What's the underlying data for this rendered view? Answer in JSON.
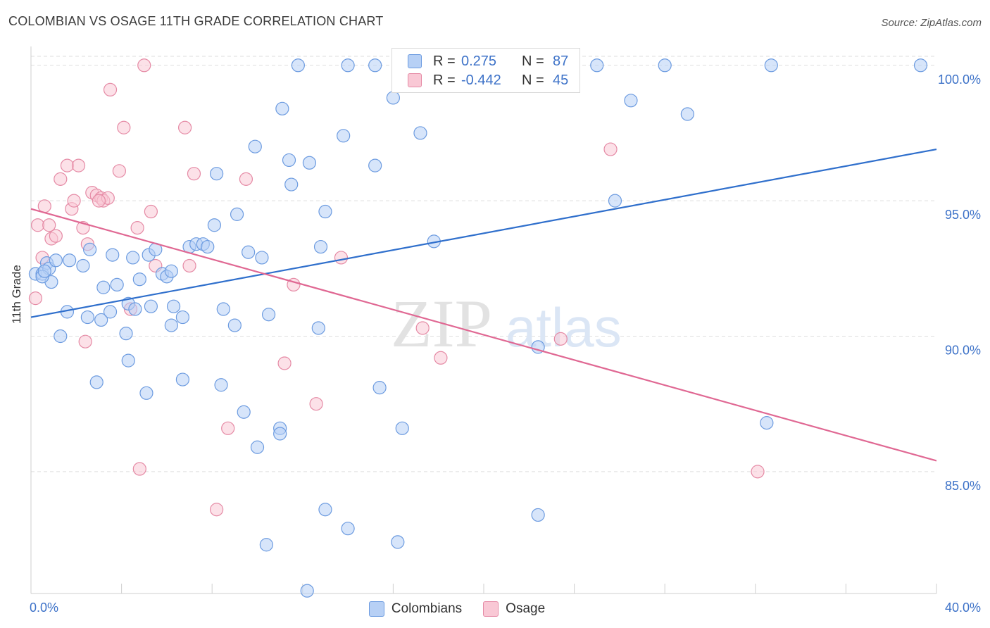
{
  "title": "COLOMBIAN VS OSAGE 11TH GRADE CORRELATION CHART",
  "source": "Source: ZipAtlas.com",
  "watermark": {
    "zip": "ZIP",
    "atlas": "atlas"
  },
  "legend_top": {
    "rows": [
      {
        "r_label": "R =",
        "r_value": "0.275",
        "n_label": "N =",
        "n_value": "87"
      },
      {
        "r_label": "R =",
        "r_value": "-0.442",
        "n_label": "N =",
        "n_value": "45"
      }
    ]
  },
  "colors": {
    "blue_fill": "#b7d0f5",
    "blue_stroke": "#6c9be0",
    "blue_line": "#2f6fcc",
    "pink_fill": "#f9c8d5",
    "pink_stroke": "#e58aa5",
    "pink_line": "#e06893",
    "tick_label": "#3d72c8",
    "grid": "#dddddd"
  },
  "chart_data": {
    "type": "scatter",
    "title": "COLOMBIAN VS OSAGE 11TH GRADE CORRELATION CHART",
    "xlabel": "",
    "ylabel": "11th Grade",
    "xlim": [
      0,
      40
    ],
    "ylim": [
      80.5,
      100.8
    ],
    "x_tick_labels": [
      "0.0%",
      "40.0%"
    ],
    "y_ticks": [
      85,
      90,
      95,
      100
    ],
    "y_tick_labels": [
      "85.0%",
      "90.0%",
      "95.0%",
      "100.0%"
    ],
    "grid": "horizontal dashed",
    "legend_placement": "bottom-center",
    "series": [
      {
        "name": "Colombians",
        "color": "#6c9be0",
        "trend": {
          "x": [
            0,
            40
          ],
          "y": [
            90.7,
            96.9
          ]
        },
        "points": [
          [
            0.2,
            92.3
          ],
          [
            0.5,
            92.3
          ],
          [
            0.7,
            92.7
          ],
          [
            0.8,
            92.5
          ],
          [
            1.1,
            92.8
          ],
          [
            0.9,
            92.0
          ],
          [
            1.7,
            92.8
          ],
          [
            2.3,
            92.6
          ],
          [
            2.6,
            93.2
          ],
          [
            1.6,
            90.9
          ],
          [
            1.3,
            90.0
          ],
          [
            2.5,
            90.7
          ],
          [
            3.1,
            90.6
          ],
          [
            3.5,
            90.9
          ],
          [
            3.2,
            91.8
          ],
          [
            3.8,
            91.9
          ],
          [
            3.6,
            93.0
          ],
          [
            4.5,
            92.9
          ],
          [
            4.3,
            91.2
          ],
          [
            4.6,
            91.0
          ],
          [
            4.8,
            92.1
          ],
          [
            5.2,
            93.0
          ],
          [
            5.5,
            93.2
          ],
          [
            5.8,
            92.3
          ],
          [
            6.0,
            92.2
          ],
          [
            6.2,
            92.4
          ],
          [
            5.3,
            91.1
          ],
          [
            6.3,
            91.1
          ],
          [
            4.2,
            90.1
          ],
          [
            4.3,
            89.1
          ],
          [
            6.2,
            90.4
          ],
          [
            6.7,
            90.7
          ],
          [
            7.0,
            93.3
          ],
          [
            7.3,
            93.4
          ],
          [
            7.6,
            93.4
          ],
          [
            7.8,
            93.3
          ],
          [
            8.1,
            94.1
          ],
          [
            8.2,
            96.0
          ],
          [
            8.5,
            91.0
          ],
          [
            9.0,
            90.4
          ],
          [
            9.1,
            94.5
          ],
          [
            9.6,
            93.1
          ],
          [
            10.2,
            92.9
          ],
          [
            9.9,
            97.0
          ],
          [
            10.5,
            90.8
          ],
          [
            11.1,
            98.4
          ],
          [
            11.4,
            96.5
          ],
          [
            11.5,
            95.6
          ],
          [
            11.8,
            100.0
          ],
          [
            12.3,
            96.4
          ],
          [
            12.8,
            93.3
          ],
          [
            12.7,
            90.3
          ],
          [
            13.0,
            94.6
          ],
          [
            13.8,
            97.4
          ],
          [
            14.0,
            100.0
          ],
          [
            15.2,
            96.3
          ],
          [
            15.4,
            88.1
          ],
          [
            16.0,
            98.8
          ],
          [
            16.4,
            86.6
          ],
          [
            17.2,
            97.5
          ],
          [
            17.8,
            93.5
          ],
          [
            11.0,
            86.6
          ],
          [
            11.0,
            86.4
          ],
          [
            10.0,
            85.9
          ],
          [
            9.4,
            87.2
          ],
          [
            8.4,
            88.2
          ],
          [
            6.7,
            88.4
          ],
          [
            5.1,
            87.9
          ],
          [
            2.9,
            88.3
          ],
          [
            13.0,
            83.6
          ],
          [
            14.0,
            82.9
          ],
          [
            10.4,
            82.3
          ],
          [
            16.2,
            82.4
          ],
          [
            12.2,
            80.6
          ],
          [
            22.4,
            89.6
          ],
          [
            22.4,
            83.4
          ],
          [
            25.0,
            100.0
          ],
          [
            25.8,
            95.0
          ],
          [
            26.5,
            98.7
          ],
          [
            28.0,
            100.0
          ],
          [
            29.0,
            98.2
          ],
          [
            32.5,
            86.8
          ],
          [
            32.7,
            100.0
          ],
          [
            39.3,
            100.0
          ],
          [
            15.2,
            100.0
          ],
          [
            0.5,
            92.2
          ],
          [
            0.6,
            92.4
          ]
        ]
      },
      {
        "name": "Osage",
        "color": "#e58aa5",
        "trend": {
          "x": [
            0,
            40
          ],
          "y": [
            94.7,
            85.4
          ]
        },
        "points": [
          [
            0.2,
            91.4
          ],
          [
            0.3,
            94.1
          ],
          [
            0.5,
            92.9
          ],
          [
            0.6,
            94.8
          ],
          [
            0.8,
            94.1
          ],
          [
            0.9,
            93.6
          ],
          [
            1.1,
            93.7
          ],
          [
            1.3,
            95.8
          ],
          [
            1.6,
            96.3
          ],
          [
            1.8,
            94.7
          ],
          [
            1.9,
            95.0
          ],
          [
            2.1,
            96.3
          ],
          [
            2.3,
            94.0
          ],
          [
            2.5,
            93.4
          ],
          [
            2.7,
            95.3
          ],
          [
            2.9,
            95.2
          ],
          [
            3.1,
            95.1
          ],
          [
            3.2,
            95.0
          ],
          [
            3.4,
            95.1
          ],
          [
            3.5,
            99.1
          ],
          [
            3.9,
            96.1
          ],
          [
            4.1,
            97.7
          ],
          [
            4.7,
            94.0
          ],
          [
            5.0,
            100.0
          ],
          [
            5.3,
            94.6
          ],
          [
            5.5,
            92.6
          ],
          [
            6.8,
            97.7
          ],
          [
            7.0,
            92.6
          ],
          [
            7.2,
            96.0
          ],
          [
            9.5,
            95.8
          ],
          [
            4.4,
            91.0
          ],
          [
            2.4,
            89.8
          ],
          [
            11.6,
            91.9
          ],
          [
            11.2,
            89.0
          ],
          [
            13.7,
            92.9
          ],
          [
            12.6,
            87.5
          ],
          [
            17.3,
            90.3
          ],
          [
            18.1,
            89.2
          ],
          [
            23.4,
            89.9
          ],
          [
            25.6,
            96.9
          ],
          [
            8.7,
            86.6
          ],
          [
            4.8,
            85.1
          ],
          [
            8.2,
            83.6
          ],
          [
            32.1,
            85.0
          ],
          [
            3.0,
            95.0
          ]
        ]
      }
    ]
  },
  "legend_bottom": [
    {
      "label": "Colombians"
    },
    {
      "label": "Osage"
    }
  ]
}
